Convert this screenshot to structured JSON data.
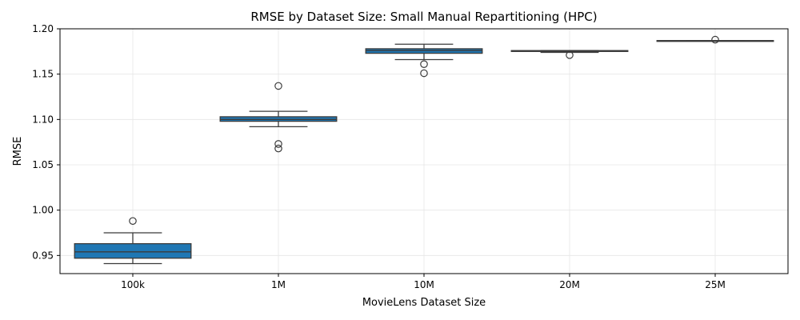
{
  "chart_data": {
    "type": "box",
    "title": "RMSE by Dataset Size: Small Manual Repartitioning (HPC)",
    "xlabel": "MovieLens Dataset Size",
    "ylabel": "RMSE",
    "ylim": [
      0.93,
      1.2
    ],
    "yticks": [
      "0.95",
      "1.00",
      "1.05",
      "1.10",
      "1.15",
      "1.20"
    ],
    "grid": true,
    "box_color": "#1f77b4",
    "categories": [
      "100k",
      "1M",
      "10M",
      "20M",
      "25M"
    ],
    "boxes": [
      {
        "category": "100k",
        "whisker_low": 0.941,
        "q1": 0.947,
        "median": 0.954,
        "q3": 0.963,
        "whisker_high": 0.975,
        "outliers": [
          0.988
        ]
      },
      {
        "category": "1M",
        "whisker_low": 1.092,
        "q1": 1.098,
        "median": 1.1,
        "q3": 1.103,
        "whisker_high": 1.109,
        "outliers": [
          1.137,
          1.073,
          1.068
        ]
      },
      {
        "category": "10M",
        "whisker_low": 1.166,
        "q1": 1.173,
        "median": 1.176,
        "q3": 1.178,
        "whisker_high": 1.183,
        "outliers": [
          1.161,
          1.151
        ]
      },
      {
        "category": "20M",
        "whisker_low": 1.174,
        "q1": 1.175,
        "median": 1.1755,
        "q3": 1.176,
        "whisker_high": 1.176,
        "outliers": [
          1.171
        ]
      },
      {
        "category": "25M",
        "whisker_low": 1.187,
        "q1": 1.187,
        "median": 1.187,
        "q3": 1.187,
        "whisker_high": 1.187,
        "outliers": [
          1.188
        ]
      }
    ]
  }
}
